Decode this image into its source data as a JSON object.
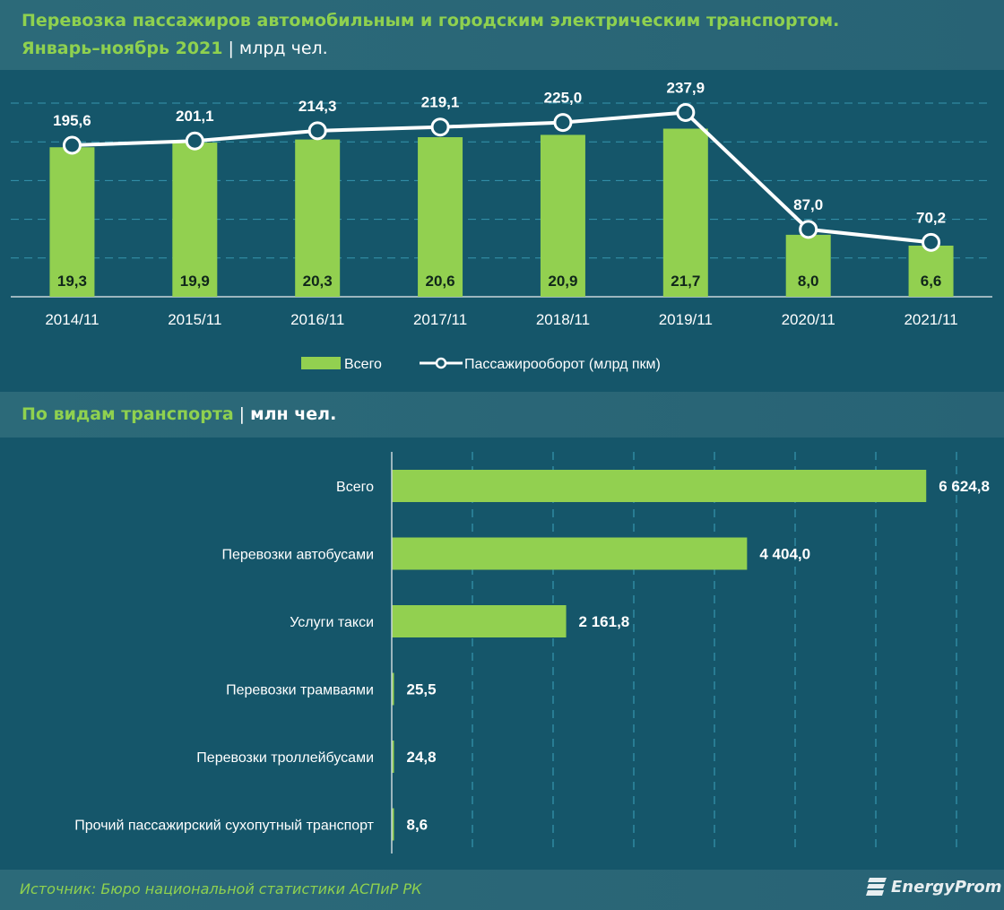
{
  "header": {
    "title_line1": "Перевозка пассажиров автомобильным и городским электрическим транспортом.",
    "title_line2_green": "Январь–ноябрь 2021",
    "separator": "|",
    "title_line2_unit": "млрд чел."
  },
  "section2": {
    "title_green": "По видам транспорта",
    "separator": "|",
    "unit": "млн чел."
  },
  "footer": {
    "source": "Источник: Бюро национальной статистики АСПиР РК",
    "logo_text": "EnergyProm",
    "logo_icon": "energyprom-logo-icon"
  },
  "colors": {
    "background": "#15566a",
    "band": "#2c6a79",
    "bar": "#92d050",
    "line": "#ffffff",
    "title_green": "#8fd14f",
    "grid": "#3fa5c0"
  },
  "chart_data": [
    {
      "type": "bar",
      "combo": "bar+line",
      "title": "Перевозка пассажиров автомобильным и городским электрическим транспортом. Январь–ноябрь 2021 | млрд чел.",
      "categories": [
        "2014/11",
        "2015/11",
        "2016/11",
        "2017/11",
        "2018/11",
        "2019/11",
        "2020/11",
        "2021/11"
      ],
      "series": [
        {
          "name": "Всего",
          "type": "bar",
          "axis": "primary",
          "values": [
            19.3,
            19.9,
            20.3,
            20.6,
            20.9,
            21.7,
            8.0,
            6.6
          ],
          "labels": [
            "19,3",
            "19,9",
            "20,3",
            "20,6",
            "20,9",
            "21,7",
            "8,0",
            "6,6"
          ]
        },
        {
          "name": "Пассажирооборот (млрд пкм)",
          "type": "line",
          "axis": "secondary",
          "values": [
            195.6,
            201.1,
            214.3,
            219.1,
            225.0,
            237.9,
            87.0,
            70.2
          ],
          "labels": [
            "195,6",
            "201,1",
            "214,3",
            "219,1",
            "225,0",
            "237,9",
            "87,0",
            "70,2"
          ]
        }
      ],
      "ylim": [
        0,
        25
      ],
      "y2lim": [
        0,
        250
      ],
      "grid": true,
      "legend": "bottom-center"
    },
    {
      "type": "bar",
      "orientation": "horizontal",
      "title": "По видам транспорта | млн чел.",
      "categories": [
        "Всего",
        "Перевозки автобусами",
        "Услуги такси",
        "Перевозки трамваями",
        "Перевозки троллейбусами",
        "Прочий пассажирский сухопутный транспорт"
      ],
      "values": [
        6624.8,
        4404.0,
        2161.8,
        25.5,
        24.8,
        8.6
      ],
      "labels": [
        "6 624,8",
        "4 404,0",
        "2 161,8",
        "25,5",
        "24,8",
        "8,6"
      ],
      "xlim": [
        0,
        7000
      ],
      "grid": true
    }
  ]
}
